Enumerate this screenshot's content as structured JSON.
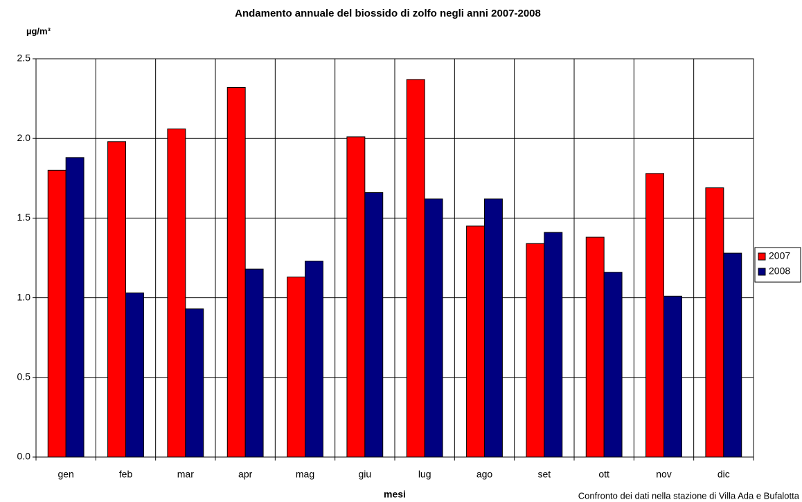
{
  "chart_data": {
    "type": "bar",
    "title": "Andamento annuale del biossido di zolfo negli anni 2007-2008",
    "y_label": "µg/m³",
    "x_label": "mesi",
    "note": "Confronto dei dati nella stazione di Villa Ada  e Bufalotta",
    "categories": [
      "gen",
      "feb",
      "mar",
      "apr",
      "mag",
      "giu",
      "lug",
      "ago",
      "set",
      "ott",
      "nov",
      "dic"
    ],
    "series": [
      {
        "name": "2007",
        "color": "#ff0000",
        "values": [
          1.8,
          1.98,
          2.06,
          2.32,
          1.13,
          2.01,
          2.37,
          1.45,
          1.34,
          1.38,
          1.78,
          1.69
        ]
      },
      {
        "name": "2008",
        "color": "#000080",
        "values": [
          1.88,
          1.03,
          0.93,
          1.18,
          1.23,
          1.66,
          1.62,
          1.62,
          1.41,
          1.16,
          1.01,
          1.28
        ]
      }
    ],
    "ylim": [
      0,
      2.5
    ],
    "yticks": [
      {
        "value": 0,
        "label": "0.0"
      },
      0.5,
      {
        "value": 1,
        "label": "1.0"
      },
      1.5,
      {
        "value": 2,
        "label": "2.0"
      },
      2.5
    ],
    "grid": true,
    "legend": "right"
  }
}
